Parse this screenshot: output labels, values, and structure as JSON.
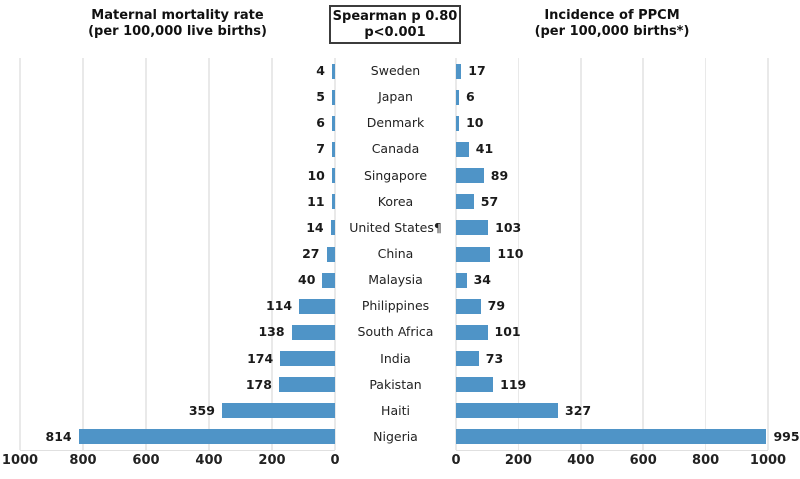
{
  "titles": {
    "left_line1": "Maternal mortality rate",
    "left_line2": "(per 100,000 live births)",
    "right_line1": "Incidence of PPCM",
    "right_line2": "(per 100,000 births*)"
  },
  "annotation_box": {
    "line1": "Spearman p 0.80",
    "line2": "p<0.001"
  },
  "chart_data": {
    "type": "bar",
    "layout": "bilateral-horizontal",
    "title_left": "Maternal mortality rate (per 100,000 live births)",
    "title_right": "Incidence of PPCM (per 100,000 births*)",
    "annotation": "Spearman p 0.80, p<0.001",
    "categories": [
      "Sweden",
      "Japan",
      "Denmark",
      "Canada",
      "Singapore",
      "Korea",
      "United States¶",
      "China",
      "Malaysia",
      "Philippines",
      "South Africa",
      "India",
      "Pakistan",
      "Haiti",
      "Nigeria"
    ],
    "series": [
      {
        "name": "Maternal mortality rate (per 100,000 live births)",
        "side": "left",
        "values": [
          4,
          5,
          6,
          7,
          10,
          11,
          14,
          27,
          40,
          114,
          138,
          174,
          178,
          359,
          814
        ]
      },
      {
        "name": "Incidence of PPCM (per 100,000 births*)",
        "side": "right",
        "values": [
          17,
          6,
          10,
          41,
          89,
          57,
          103,
          110,
          34,
          79,
          101,
          73,
          119,
          327,
          995
        ]
      }
    ],
    "left_axis_ticks": [
      1000,
      800,
      600,
      400,
      200,
      0
    ],
    "right_axis_ticks": [
      0,
      200,
      400,
      600,
      800,
      1000
    ],
    "xlim": [
      0,
      1000
    ],
    "grid": true,
    "legend": "none",
    "bar_color": "#4f94c7",
    "grid_color": "#e9e9e9"
  }
}
